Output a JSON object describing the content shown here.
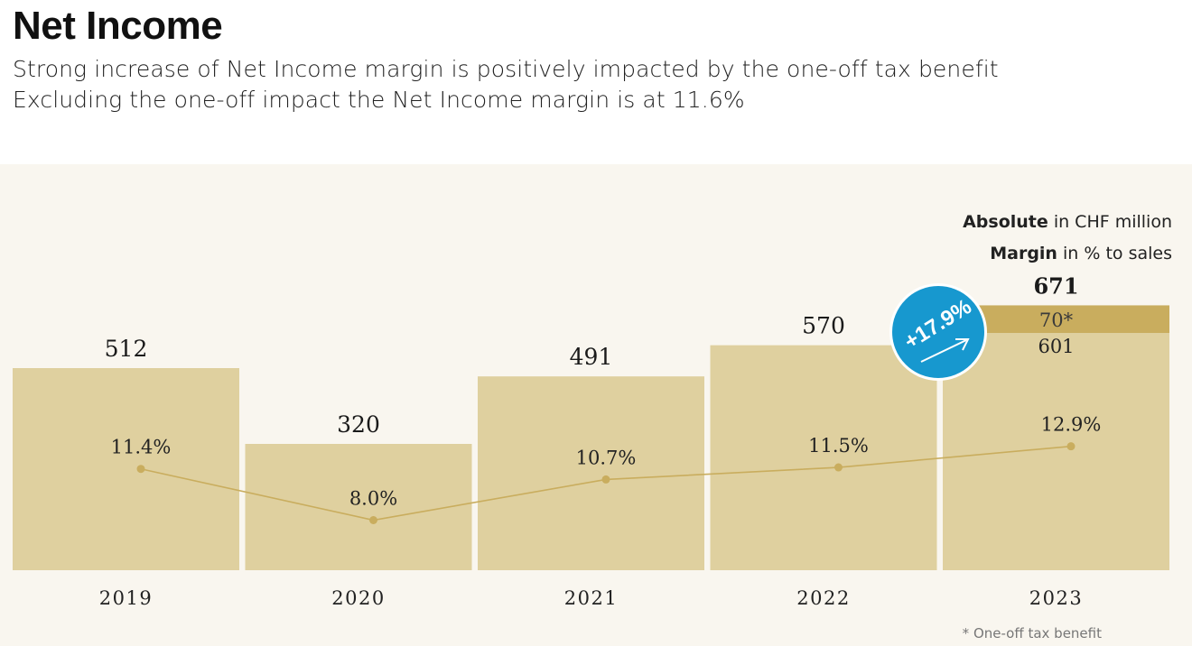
{
  "header": {
    "title": "Net Income",
    "subtitle_line1": "Strong increase of Net Income margin is positively impacted by the one-off tax benefit",
    "subtitle_line2": "Excluding the one-off impact the Net Income margin is at 11.6%"
  },
  "legend": {
    "absolute_bold": "Absolute",
    "absolute_rest": " in CHF million",
    "margin_bold": "Margin",
    "margin_rest": " in % to sales"
  },
  "badge": {
    "text": "+17.9%"
  },
  "footnote": "* One-off tax benefit",
  "colors": {
    "panel": "#f9f6ef",
    "bar": "#dfd09f",
    "one_off_segment": "#c9ad5e",
    "margin_line": "#c9ad5e",
    "badge": "#1798cf"
  },
  "chart_data": {
    "type": "bar",
    "categories": [
      "2019",
      "2020",
      "2021",
      "2022",
      "2023"
    ],
    "absolute_labels": [
      "512",
      "320",
      "491",
      "570",
      "671"
    ],
    "series": [
      {
        "values": [
          512,
          320,
          491,
          570,
          601
        ]
      },
      {
        "values": [
          0,
          0,
          0,
          0,
          70
        ]
      }
    ],
    "one_off_label": "70*",
    "base_2023_label": "601",
    "margin": {
      "type": "line",
      "values": [
        11.4,
        8.0,
        10.7,
        11.5,
        12.9
      ],
      "labels": [
        "11.4%",
        "8.0%",
        "10.7%",
        "11.5%",
        "12.9%"
      ]
    },
    "grid": false
  }
}
